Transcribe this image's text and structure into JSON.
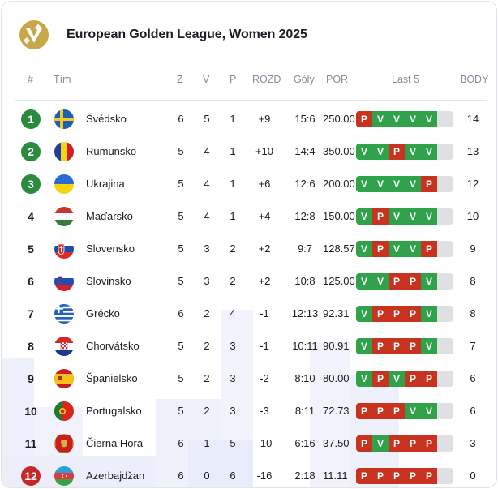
{
  "header": {
    "title": "European Golden League, Women 2025",
    "logo_icon": "league-logo-icon"
  },
  "columns": {
    "rank": "#",
    "team": "Tím",
    "z": "Z",
    "v": "V",
    "p": "P",
    "rozd": "ROZD",
    "goly": "Góly",
    "por": "POR",
    "last5": "Last 5",
    "body": "BODY"
  },
  "colors": {
    "win": "#2fa24a",
    "loss": "#c8331f",
    "qualify": "#2a8a3e",
    "relegate": "#c62828"
  },
  "rows": [
    {
      "rank": "1",
      "rank_style": "green",
      "flag": "sweden-flag-icon",
      "team": "Švédsko",
      "z": "6",
      "v": "5",
      "p": "1",
      "rozd": "+9",
      "goly": "15:6",
      "por": "250.00",
      "last5": [
        "P",
        "V",
        "V",
        "V",
        "V"
      ],
      "body": "14"
    },
    {
      "rank": "2",
      "rank_style": "green",
      "flag": "romania-flag-icon",
      "team": "Rumunsko",
      "z": "5",
      "v": "4",
      "p": "1",
      "rozd": "+10",
      "goly": "14:4",
      "por": "350.00",
      "last5": [
        "V",
        "V",
        "P",
        "V",
        "V"
      ],
      "body": "13"
    },
    {
      "rank": "3",
      "rank_style": "green",
      "flag": "ukraine-flag-icon",
      "team": "Ukrajina",
      "z": "5",
      "v": "4",
      "p": "1",
      "rozd": "+6",
      "goly": "12:6",
      "por": "200.00",
      "last5": [
        "V",
        "V",
        "V",
        "V",
        "P"
      ],
      "body": "12"
    },
    {
      "rank": "4",
      "rank_style": "plain",
      "flag": "hungary-flag-icon",
      "team": "Maďarsko",
      "z": "5",
      "v": "4",
      "p": "1",
      "rozd": "+4",
      "goly": "12:8",
      "por": "150.00",
      "last5": [
        "V",
        "P",
        "V",
        "V",
        "V"
      ],
      "body": "10"
    },
    {
      "rank": "5",
      "rank_style": "plain",
      "flag": "slovakia-flag-icon",
      "team": "Slovensko",
      "z": "5",
      "v": "3",
      "p": "2",
      "rozd": "+2",
      "goly": "9:7",
      "por": "128.57",
      "last5": [
        "V",
        "P",
        "V",
        "V",
        "P"
      ],
      "body": "9"
    },
    {
      "rank": "6",
      "rank_style": "plain",
      "flag": "slovenia-flag-icon",
      "team": "Slovinsko",
      "z": "5",
      "v": "3",
      "p": "2",
      "rozd": "+2",
      "goly": "10:8",
      "por": "125.00",
      "last5": [
        "V",
        "V",
        "P",
        "P",
        "V"
      ],
      "body": "8"
    },
    {
      "rank": "7",
      "rank_style": "plain",
      "flag": "greece-flag-icon",
      "team": "Grécko",
      "z": "6",
      "v": "2",
      "p": "4",
      "rozd": "-1",
      "goly": "12:13",
      "por": "92.31",
      "last5": [
        "V",
        "P",
        "P",
        "P",
        "V"
      ],
      "body": "8"
    },
    {
      "rank": "8",
      "rank_style": "plain",
      "flag": "croatia-flag-icon",
      "team": "Chorvátsko",
      "z": "5",
      "v": "2",
      "p": "3",
      "rozd": "-1",
      "goly": "10:11",
      "por": "90.91",
      "last5": [
        "V",
        "P",
        "P",
        "P",
        "V"
      ],
      "body": "7"
    },
    {
      "rank": "9",
      "rank_style": "plain",
      "flag": "spain-flag-icon",
      "team": "Španielsko",
      "z": "5",
      "v": "2",
      "p": "3",
      "rozd": "-2",
      "goly": "8:10",
      "por": "80.00",
      "last5": [
        "V",
        "P",
        "V",
        "P",
        "P"
      ],
      "body": "6"
    },
    {
      "rank": "10",
      "rank_style": "plain",
      "flag": "portugal-flag-icon",
      "team": "Portugalsko",
      "z": "5",
      "v": "2",
      "p": "3",
      "rozd": "-3",
      "goly": "8:11",
      "por": "72.73",
      "last5": [
        "P",
        "P",
        "P",
        "V",
        "V"
      ],
      "body": "6"
    },
    {
      "rank": "11",
      "rank_style": "plain",
      "flag": "montenegro-flag-icon",
      "team": "Čierna Hora",
      "z": "6",
      "v": "1",
      "p": "5",
      "rozd": "-10",
      "goly": "6:16",
      "por": "37.50",
      "last5": [
        "P",
        "V",
        "P",
        "P",
        "P"
      ],
      "body": "3"
    },
    {
      "rank": "12",
      "rank_style": "red",
      "flag": "azerbaijan-flag-icon",
      "team": "Azerbajdžan",
      "z": "6",
      "v": "0",
      "p": "6",
      "rozd": "-16",
      "goly": "2:18",
      "por": "11.11",
      "last5": [
        "P",
        "P",
        "P",
        "P",
        "P"
      ],
      "body": "0"
    }
  ]
}
